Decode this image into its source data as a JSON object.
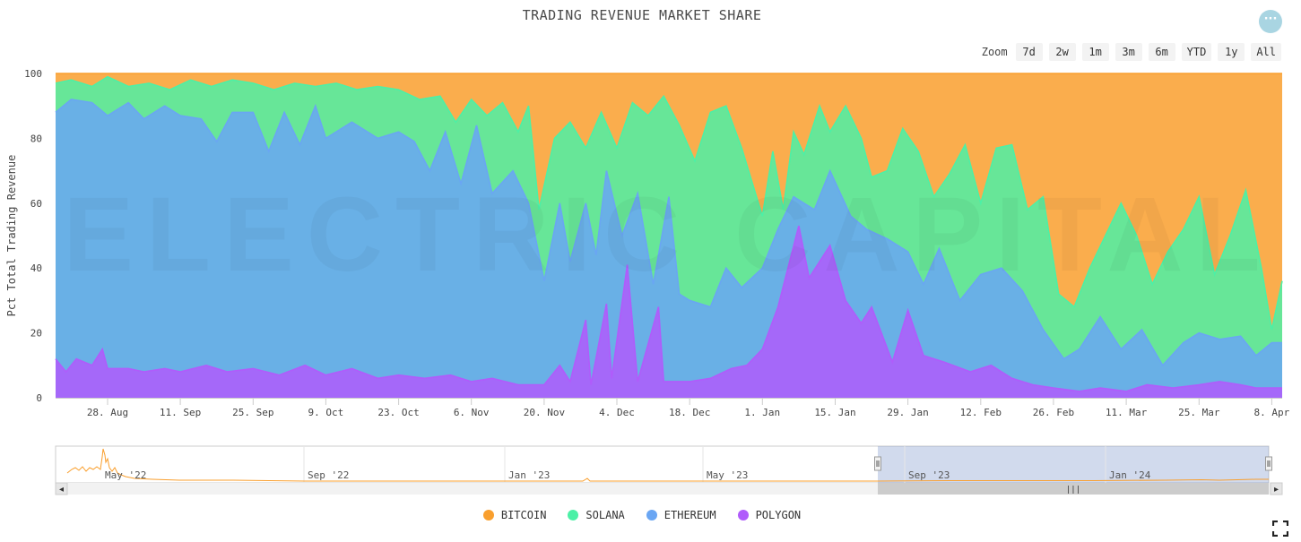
{
  "title": "TRADING REVENUE MARKET SHARE",
  "menu_icon": "ellipsis-icon",
  "menu_glyph": "···",
  "zoom": {
    "label": "Zoom",
    "options": [
      "7d",
      "2w",
      "1m",
      "3m",
      "6m",
      "YTD",
      "1y",
      "All"
    ]
  },
  "watermark": "ELECTRIC CAPITAL",
  "navigator": {
    "labels": [
      "May '22",
      "Sep '22",
      "Jan '23",
      "May '23",
      "Sep '23",
      "Jan '24"
    ],
    "left_arrow": "◂",
    "right_arrow": "▸",
    "grip": "|||"
  },
  "chart_data": {
    "type": "area",
    "stacking": "percent",
    "ylabel": "Pct Total Trading Revenue",
    "ylim": [
      0,
      100
    ],
    "yticks": [
      0,
      20,
      40,
      60,
      80,
      100
    ],
    "xlim": [
      "2023-08-18",
      "2024-04-10"
    ],
    "xticks": [
      "28. Aug",
      "11. Sep",
      "25. Sep",
      "9. Oct",
      "23. Oct",
      "6. Nov",
      "20. Nov",
      "4. Dec",
      "18. Dec",
      "1. Jan",
      "15. Jan",
      "29. Jan",
      "12. Feb",
      "26. Feb",
      "11. Mar",
      "25. Mar",
      "8. Apr"
    ],
    "xtick_dates": [
      "2023-08-28",
      "2023-09-11",
      "2023-09-25",
      "2023-10-09",
      "2023-10-23",
      "2023-11-06",
      "2023-11-20",
      "2023-12-04",
      "2023-12-18",
      "2024-01-01",
      "2024-01-15",
      "2024-01-29",
      "2024-02-12",
      "2024-02-26",
      "2024-03-11",
      "2024-03-25",
      "2024-04-08"
    ],
    "legend_position": "bottom-center",
    "series": [
      {
        "name": "BITCOIN",
        "color": "#f99f2e"
      },
      {
        "name": "SOLANA",
        "color": "#4cf0a6"
      },
      {
        "name": "ETHEREUM",
        "color": "#6aa6f3"
      },
      {
        "name": "POLYGON",
        "color": "#b05cfb"
      }
    ],
    "cumulative_top": [
      {
        "series": "POLYGON",
        "points": [
          [
            "2023-08-18",
            12
          ],
          [
            "2023-08-20",
            8
          ],
          [
            "2023-08-22",
            12
          ],
          [
            "2023-08-25",
            10
          ],
          [
            "2023-08-27",
            15
          ],
          [
            "2023-08-28",
            9
          ],
          [
            "2023-09-01",
            9
          ],
          [
            "2023-09-04",
            8
          ],
          [
            "2023-09-08",
            9
          ],
          [
            "2023-09-11",
            8
          ],
          [
            "2023-09-16",
            10
          ],
          [
            "2023-09-20",
            8
          ],
          [
            "2023-09-25",
            9
          ],
          [
            "2023-09-30",
            7
          ],
          [
            "2023-10-05",
            10
          ],
          [
            "2023-10-09",
            7
          ],
          [
            "2023-10-14",
            9
          ],
          [
            "2023-10-19",
            6
          ],
          [
            "2023-10-23",
            7
          ],
          [
            "2023-10-28",
            6
          ],
          [
            "2023-11-02",
            7
          ],
          [
            "2023-11-06",
            5
          ],
          [
            "2023-11-10",
            6
          ],
          [
            "2023-11-15",
            4
          ],
          [
            "2023-11-20",
            4
          ],
          [
            "2023-11-23",
            10
          ],
          [
            "2023-11-25",
            5
          ],
          [
            "2023-11-28",
            24
          ],
          [
            "2023-11-29",
            4
          ],
          [
            "2023-12-02",
            29
          ],
          [
            "2023-12-03",
            6
          ],
          [
            "2023-12-06",
            41
          ],
          [
            "2023-12-08",
            5
          ],
          [
            "2023-12-12",
            28
          ],
          [
            "2023-12-13",
            5
          ],
          [
            "2023-12-18",
            5
          ],
          [
            "2023-12-22",
            6
          ],
          [
            "2023-12-26",
            9
          ],
          [
            "2023-12-29",
            10
          ],
          [
            "2024-01-01",
            15
          ],
          [
            "2024-01-04",
            28
          ],
          [
            "2024-01-08",
            53
          ],
          [
            "2024-01-10",
            37
          ],
          [
            "2024-01-14",
            47
          ],
          [
            "2024-01-17",
            30
          ],
          [
            "2024-01-20",
            23
          ],
          [
            "2024-01-22",
            28
          ],
          [
            "2024-01-26",
            11
          ],
          [
            "2024-01-29",
            27
          ],
          [
            "2024-02-01",
            13
          ],
          [
            "2024-02-05",
            11
          ],
          [
            "2024-02-10",
            8
          ],
          [
            "2024-02-14",
            10
          ],
          [
            "2024-02-18",
            6
          ],
          [
            "2024-02-22",
            4
          ],
          [
            "2024-02-26",
            3
          ],
          [
            "2024-03-02",
            2
          ],
          [
            "2024-03-06",
            3
          ],
          [
            "2024-03-11",
            2
          ],
          [
            "2024-03-15",
            4
          ],
          [
            "2024-03-20",
            3
          ],
          [
            "2024-03-25",
            4
          ],
          [
            "2024-03-29",
            5
          ],
          [
            "2024-04-02",
            4
          ],
          [
            "2024-04-05",
            3
          ],
          [
            "2024-04-10",
            3
          ]
        ]
      },
      {
        "series": "ETHEREUM",
        "points": [
          [
            "2023-08-18",
            88
          ],
          [
            "2023-08-21",
            92
          ],
          [
            "2023-08-25",
            91
          ],
          [
            "2023-08-28",
            87
          ],
          [
            "2023-09-01",
            91
          ],
          [
            "2023-09-04",
            86
          ],
          [
            "2023-09-08",
            90
          ],
          [
            "2023-09-11",
            87
          ],
          [
            "2023-09-15",
            86
          ],
          [
            "2023-09-18",
            79
          ],
          [
            "2023-09-21",
            88
          ],
          [
            "2023-09-25",
            88
          ],
          [
            "2023-09-28",
            76
          ],
          [
            "2023-10-01",
            88
          ],
          [
            "2023-10-04",
            78
          ],
          [
            "2023-10-07",
            90
          ],
          [
            "2023-10-09",
            80
          ],
          [
            "2023-10-14",
            85
          ],
          [
            "2023-10-19",
            80
          ],
          [
            "2023-10-23",
            82
          ],
          [
            "2023-10-26",
            79
          ],
          [
            "2023-10-29",
            70
          ],
          [
            "2023-11-01",
            82
          ],
          [
            "2023-11-04",
            66
          ],
          [
            "2023-11-07",
            84
          ],
          [
            "2023-11-10",
            63
          ],
          [
            "2023-11-14",
            70
          ],
          [
            "2023-11-17",
            60
          ],
          [
            "2023-11-20",
            36
          ],
          [
            "2023-11-23",
            60
          ],
          [
            "2023-11-25",
            42
          ],
          [
            "2023-11-28",
            60
          ],
          [
            "2023-11-30",
            44
          ],
          [
            "2023-12-02",
            70
          ],
          [
            "2023-12-05",
            50
          ],
          [
            "2023-12-08",
            63
          ],
          [
            "2023-12-11",
            35
          ],
          [
            "2023-12-14",
            62
          ],
          [
            "2023-12-16",
            32
          ],
          [
            "2023-12-18",
            30
          ],
          [
            "2023-12-22",
            28
          ],
          [
            "2023-12-25",
            40
          ],
          [
            "2023-12-28",
            34
          ],
          [
            "2024-01-01",
            40
          ],
          [
            "2024-01-04",
            52
          ],
          [
            "2024-01-07",
            62
          ],
          [
            "2024-01-11",
            58
          ],
          [
            "2024-01-14",
            70
          ],
          [
            "2024-01-18",
            56
          ],
          [
            "2024-01-21",
            52
          ],
          [
            "2024-01-25",
            49
          ],
          [
            "2024-01-29",
            45
          ],
          [
            "2024-02-01",
            35
          ],
          [
            "2024-02-04",
            46
          ],
          [
            "2024-02-08",
            30
          ],
          [
            "2024-02-12",
            38
          ],
          [
            "2024-02-16",
            40
          ],
          [
            "2024-02-20",
            33
          ],
          [
            "2024-02-24",
            21
          ],
          [
            "2024-02-28",
            12
          ],
          [
            "2024-03-02",
            15
          ],
          [
            "2024-03-06",
            25
          ],
          [
            "2024-03-10",
            15
          ],
          [
            "2024-03-14",
            21
          ],
          [
            "2024-03-18",
            10
          ],
          [
            "2024-03-22",
            17
          ],
          [
            "2024-03-25",
            20
          ],
          [
            "2024-03-29",
            18
          ],
          [
            "2024-04-02",
            19
          ],
          [
            "2024-04-05",
            13
          ],
          [
            "2024-04-08",
            17
          ],
          [
            "2024-04-10",
            17
          ]
        ]
      },
      {
        "series": "SOLANA",
        "points": [
          [
            "2023-08-18",
            97
          ],
          [
            "2023-08-21",
            98
          ],
          [
            "2023-08-25",
            96
          ],
          [
            "2023-08-28",
            99
          ],
          [
            "2023-09-01",
            96
          ],
          [
            "2023-09-05",
            97
          ],
          [
            "2023-09-09",
            95
          ],
          [
            "2023-09-13",
            98
          ],
          [
            "2023-09-17",
            96
          ],
          [
            "2023-09-21",
            98
          ],
          [
            "2023-09-25",
            97
          ],
          [
            "2023-09-29",
            95
          ],
          [
            "2023-10-03",
            97
          ],
          [
            "2023-10-07",
            96
          ],
          [
            "2023-10-11",
            97
          ],
          [
            "2023-10-15",
            95
          ],
          [
            "2023-10-19",
            96
          ],
          [
            "2023-10-23",
            95
          ],
          [
            "2023-10-27",
            92
          ],
          [
            "2023-10-31",
            93
          ],
          [
            "2023-11-03",
            85
          ],
          [
            "2023-11-06",
            92
          ],
          [
            "2023-11-09",
            87
          ],
          [
            "2023-11-12",
            91
          ],
          [
            "2023-11-15",
            82
          ],
          [
            "2023-11-17",
            90
          ],
          [
            "2023-11-19",
            58
          ],
          [
            "2023-11-22",
            80
          ],
          [
            "2023-11-25",
            85
          ],
          [
            "2023-11-28",
            77
          ],
          [
            "2023-12-01",
            88
          ],
          [
            "2023-12-04",
            77
          ],
          [
            "2023-12-07",
            91
          ],
          [
            "2023-12-10",
            87
          ],
          [
            "2023-12-13",
            93
          ],
          [
            "2023-12-16",
            84
          ],
          [
            "2023-12-19",
            73
          ],
          [
            "2023-12-22",
            88
          ],
          [
            "2023-12-25",
            90
          ],
          [
            "2023-12-28",
            77
          ],
          [
            "2024-01-01",
            56
          ],
          [
            "2024-01-03",
            76
          ],
          [
            "2024-01-05",
            58
          ],
          [
            "2024-01-07",
            82
          ],
          [
            "2024-01-09",
            75
          ],
          [
            "2024-01-12",
            90
          ],
          [
            "2024-01-14",
            82
          ],
          [
            "2024-01-17",
            90
          ],
          [
            "2024-01-20",
            80
          ],
          [
            "2024-01-22",
            68
          ],
          [
            "2024-01-25",
            70
          ],
          [
            "2024-01-28",
            83
          ],
          [
            "2024-01-31",
            76
          ],
          [
            "2024-02-03",
            62
          ],
          [
            "2024-02-06",
            69
          ],
          [
            "2024-02-09",
            78
          ],
          [
            "2024-02-12",
            60
          ],
          [
            "2024-02-15",
            77
          ],
          [
            "2024-02-18",
            78
          ],
          [
            "2024-02-21",
            58
          ],
          [
            "2024-02-24",
            62
          ],
          [
            "2024-02-27",
            32
          ],
          [
            "2024-03-01",
            28
          ],
          [
            "2024-03-04",
            40
          ],
          [
            "2024-03-07",
            50
          ],
          [
            "2024-03-10",
            60
          ],
          [
            "2024-03-13",
            50
          ],
          [
            "2024-03-16",
            35
          ],
          [
            "2024-03-19",
            45
          ],
          [
            "2024-03-22",
            52
          ],
          [
            "2024-03-25",
            62
          ],
          [
            "2024-03-28",
            38
          ],
          [
            "2024-03-31",
            50
          ],
          [
            "2024-04-03",
            64
          ],
          [
            "2024-04-06",
            40
          ],
          [
            "2024-04-08",
            21
          ],
          [
            "2024-04-10",
            36
          ]
        ]
      },
      {
        "series": "BITCOIN",
        "points": [
          [
            "2023-08-18",
            100
          ],
          [
            "2024-04-10",
            100
          ]
        ]
      }
    ]
  }
}
